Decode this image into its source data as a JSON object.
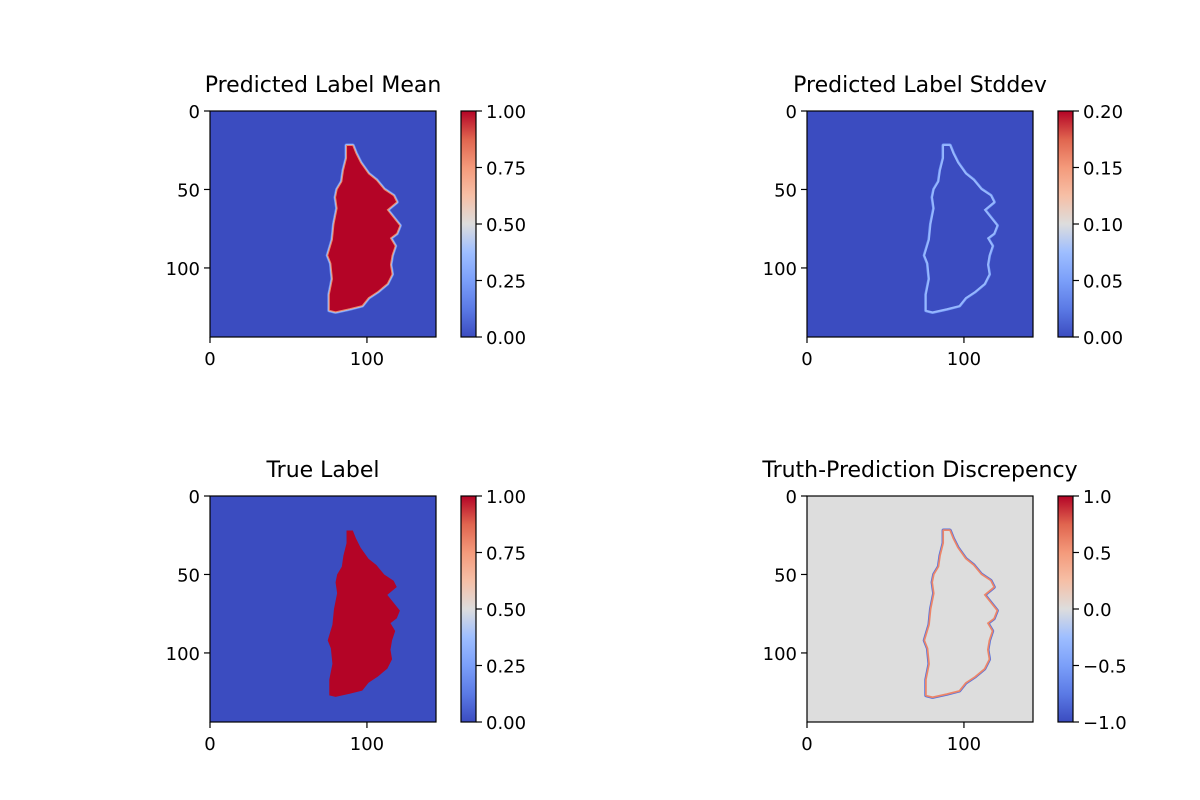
{
  "chart_data": [
    {
      "type": "heatmap",
      "title": "Predicted Label Mean",
      "colormap": "coolwarm",
      "image_size": [
        144,
        144
      ],
      "xlim": [
        0,
        144
      ],
      "ylim": [
        144,
        0
      ],
      "xticks": [
        0,
        100
      ],
      "xtick_labels": [
        "0",
        "100"
      ],
      "yticks": [
        0,
        50,
        100
      ],
      "ytick_labels": [
        "0",
        "50",
        "100"
      ],
      "colorbar": {
        "min": 0.0,
        "max": 1.0,
        "ticks": [
          0.0,
          0.25,
          0.5,
          0.75,
          1.0
        ],
        "tick_labels": [
          "0.00",
          "0.25",
          "0.50",
          "0.75",
          "1.00"
        ]
      },
      "background_value": 0.0,
      "region": {
        "value": 1.0,
        "edge_values": [
          0.2,
          0.4,
          0.6,
          0.8
        ]
      }
    },
    {
      "type": "heatmap",
      "title": "Predicted Label Stddev",
      "colormap": "coolwarm",
      "image_size": [
        144,
        144
      ],
      "xlim": [
        0,
        144
      ],
      "ylim": [
        144,
        0
      ],
      "xticks": [
        0,
        100
      ],
      "xtick_labels": [
        "0",
        "100"
      ],
      "yticks": [
        0,
        50,
        100
      ],
      "ytick_labels": [
        "0",
        "50",
        "100"
      ],
      "colorbar": {
        "min": 0.0,
        "max": 0.2,
        "ticks": [
          0.0,
          0.05,
          0.1,
          0.15,
          0.2
        ],
        "tick_labels": [
          "0.00",
          "0.05",
          "0.10",
          "0.15",
          "0.20"
        ]
      },
      "background_value": 0.0,
      "region": {
        "value": 0.0,
        "edge_values": [
          0.05,
          0.07
        ]
      }
    },
    {
      "type": "heatmap",
      "title": "True Label",
      "colormap": "coolwarm",
      "image_size": [
        144,
        144
      ],
      "xlim": [
        0,
        144
      ],
      "ylim": [
        144,
        0
      ],
      "xticks": [
        0,
        100
      ],
      "xtick_labels": [
        "0",
        "100"
      ],
      "yticks": [
        0,
        50,
        100
      ],
      "ytick_labels": [
        "0",
        "50",
        "100"
      ],
      "colorbar": {
        "min": 0.0,
        "max": 1.0,
        "ticks": [
          0.0,
          0.25,
          0.5,
          0.75,
          1.0
        ],
        "tick_labels": [
          "0.00",
          "0.25",
          "0.50",
          "0.75",
          "1.00"
        ]
      },
      "background_value": 0.0,
      "region": {
        "value": 1.0,
        "edge_values": []
      }
    },
    {
      "type": "heatmap",
      "title": "Truth-Prediction Discrepency",
      "colormap": "coolwarm",
      "image_size": [
        144,
        144
      ],
      "xlim": [
        0,
        144
      ],
      "ylim": [
        144,
        0
      ],
      "xticks": [
        0,
        100
      ],
      "xtick_labels": [
        "0",
        "100"
      ],
      "yticks": [
        0,
        50,
        100
      ],
      "ytick_labels": [
        "0",
        "50",
        "100"
      ],
      "colorbar": {
        "min": -1.0,
        "max": 1.0,
        "ticks": [
          -1.0,
          -0.5,
          0.0,
          0.5,
          1.0
        ],
        "tick_labels": [
          "−1.0",
          "−0.5",
          "0.0",
          "0.5",
          "1.0"
        ]
      },
      "background_value": 0.0,
      "region": {
        "value": 0.0,
        "edge_values": [
          -0.8,
          0.6
        ]
      }
    }
  ]
}
